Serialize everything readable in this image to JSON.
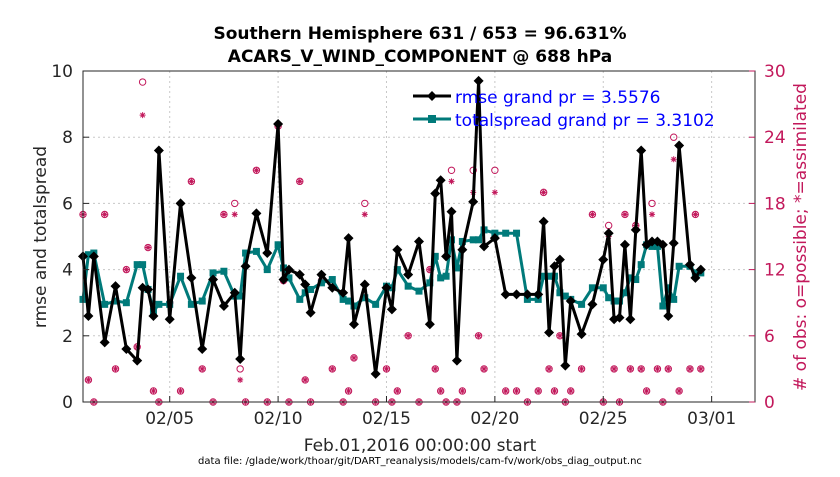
{
  "chart_data": {
    "type": "line",
    "title_line1": "Southern Hemisphere 631 / 653 = 96.631%",
    "title_line2": "ACARS_V_WIND_COMPONENT @ 688 hPa",
    "xlabel": "Feb.01,2016 00:00:00 start",
    "ylabel_left": "rmse and totalspread",
    "ylabel_right": "# of obs: o=possible; *=assimilated",
    "footnote": "data file: /glade/work/thoar/git/DART_reanalysis/models/cam-fv/work/obs_diag_output.nc",
    "xlim": [
      1,
      32
    ],
    "ylim_left": [
      0,
      10
    ],
    "ylim_right": [
      0,
      30
    ],
    "x_ticks": [
      5,
      10,
      15,
      20,
      25,
      30
    ],
    "x_tick_labels": [
      "02/05",
      "02/10",
      "02/15",
      "02/20",
      "02/25",
      "03/01"
    ],
    "y_ticks_left": [
      "0",
      "2",
      "4",
      "6",
      "8",
      "10"
    ],
    "y_ticks_right": [
      "0",
      "6",
      "12",
      "18",
      "24",
      "30"
    ],
    "grid": true,
    "legend_position": "top-right",
    "colors": {
      "rmse": "#000000",
      "spread": "#007a7a",
      "obs": "#c2185b",
      "legend_text": "#0000ff"
    },
    "series": [
      {
        "name": "rmse grand pr = 3.5576",
        "x": [
          1.0,
          1.25,
          1.5,
          2.0,
          2.5,
          3.0,
          3.5,
          3.75,
          4.0,
          4.25,
          4.5,
          5.0,
          5.5,
          6.0,
          6.5,
          7.0,
          7.5,
          8.0,
          8.25,
          8.5,
          9.0,
          9.5,
          10.0,
          10.25,
          10.5,
          11.0,
          11.25,
          11.5,
          12.0,
          12.5,
          13.0,
          13.25,
          13.5,
          14.0,
          14.5,
          15.0,
          15.25,
          15.5,
          16.0,
          16.5,
          17.0,
          17.25,
          17.5,
          17.75,
          18.0,
          18.25,
          18.5,
          19.0,
          19.25,
          19.5,
          20.0,
          20.5,
          21.0,
          21.5,
          22.0,
          22.25,
          22.5,
          22.75,
          23.0,
          23.25,
          23.5,
          24.0,
          24.5,
          25.0,
          25.25,
          25.5,
          25.75,
          26.0,
          26.25,
          26.5,
          26.75,
          27.0,
          27.25,
          27.5,
          27.75,
          28.0,
          28.25,
          28.5,
          29.0,
          29.25,
          29.5
        ],
        "values": [
          4.4,
          2.6,
          4.4,
          1.8,
          3.5,
          1.6,
          1.25,
          3.45,
          3.4,
          2.6,
          7.6,
          2.5,
          6.0,
          3.75,
          1.6,
          3.7,
          2.9,
          3.3,
          1.3,
          4.1,
          5.7,
          4.5,
          8.4,
          3.7,
          4.0,
          3.85,
          3.55,
          2.7,
          3.85,
          3.45,
          3.3,
          4.95,
          2.35,
          3.55,
          0.85,
          3.45,
          2.8,
          4.6,
          3.85,
          4.85,
          2.35,
          6.3,
          6.7,
          4.4,
          5.75,
          1.25,
          4.6,
          6.05,
          9.7,
          4.7,
          4.95,
          3.25,
          3.25,
          3.25,
          3.25,
          5.45,
          2.1,
          4.1,
          4.3,
          1.1,
          3.05,
          2.05,
          2.95,
          4.3,
          5.1,
          2.5,
          2.55,
          4.75,
          2.5,
          5.2,
          7.6,
          4.75,
          4.85,
          4.85,
          4.75,
          2.6,
          4.8,
          7.75,
          4.15,
          3.75,
          4.0
        ]
      },
      {
        "name": "totalspread grand pr = 3.3102",
        "x": [
          1.0,
          1.25,
          1.5,
          2.0,
          2.5,
          3.0,
          3.5,
          3.75,
          4.0,
          4.25,
          4.5,
          5.0,
          5.5,
          6.0,
          6.5,
          7.0,
          7.5,
          8.0,
          8.25,
          8.5,
          9.0,
          9.5,
          10.0,
          10.25,
          10.5,
          11.0,
          11.25,
          11.5,
          12.0,
          12.5,
          13.0,
          13.25,
          13.5,
          14.0,
          14.5,
          15.0,
          15.25,
          15.5,
          16.0,
          16.5,
          17.0,
          17.25,
          17.5,
          17.75,
          18.0,
          18.25,
          18.5,
          19.0,
          19.25,
          19.5,
          20.0,
          20.5,
          21.0,
          21.5,
          22.0,
          22.25,
          22.5,
          22.75,
          23.0,
          23.25,
          23.5,
          24.0,
          24.5,
          25.0,
          25.25,
          25.5,
          25.75,
          26.0,
          26.25,
          26.5,
          26.75,
          27.0,
          27.25,
          27.5,
          27.75,
          28.0,
          28.25,
          28.5,
          29.0,
          29.25,
          29.5
        ],
        "values": [
          3.1,
          4.45,
          4.5,
          2.95,
          3.05,
          3.0,
          4.15,
          4.15,
          3.4,
          2.75,
          2.95,
          2.95,
          3.8,
          2.95,
          3.05,
          3.9,
          3.95,
          3.2,
          3.2,
          4.5,
          4.55,
          4.0,
          4.75,
          4.05,
          3.75,
          3.1,
          3.3,
          3.4,
          3.6,
          3.7,
          3.1,
          3.05,
          2.9,
          3.15,
          2.95,
          3.5,
          3.45,
          4.0,
          3.5,
          3.35,
          3.6,
          4.4,
          3.75,
          3.8,
          4.9,
          4.05,
          4.85,
          4.9,
          4.9,
          5.2,
          5.1,
          5.1,
          5.1,
          3.1,
          3.1,
          3.8,
          3.8,
          3.8,
          3.3,
          3.2,
          3.1,
          2.95,
          3.45,
          3.45,
          3.15,
          3.05,
          3.05,
          3.3,
          3.75,
          3.7,
          4.15,
          4.75,
          4.7,
          4.7,
          2.9,
          3.45,
          3.1,
          4.1,
          4.1,
          3.9,
          3.9
        ]
      },
      {
        "name": "possible",
        "x": [
          1.0,
          1.25,
          1.5,
          2.0,
          2.5,
          3.0,
          3.5,
          3.75,
          4.0,
          4.25,
          4.5,
          5.0,
          5.5,
          6.0,
          6.5,
          7.0,
          7.5,
          8.0,
          8.25,
          8.5,
          9.0,
          9.5,
          10.0,
          10.25,
          10.5,
          11.0,
          11.25,
          11.5,
          12.0,
          12.5,
          13.0,
          13.25,
          13.5,
          14.0,
          14.5,
          15.0,
          15.25,
          15.5,
          16.0,
          16.5,
          17.0,
          17.25,
          17.5,
          17.75,
          18.0,
          18.25,
          18.5,
          19.0,
          19.25,
          19.5,
          20.0,
          20.5,
          21.0,
          21.5,
          22.0,
          22.25,
          22.5,
          22.75,
          23.0,
          23.25,
          23.5,
          24.0,
          24.5,
          25.0,
          25.25,
          25.5,
          25.75,
          26.0,
          26.25,
          26.5,
          26.75,
          27.0,
          27.25,
          27.5,
          27.75,
          28.0,
          28.25,
          28.5,
          29.0,
          29.25,
          29.5
        ],
        "values": [
          17,
          2,
          0,
          17,
          3,
          12,
          5,
          29,
          14,
          1,
          0,
          9,
          1,
          20,
          3,
          0,
          17,
          18,
          3,
          0,
          21,
          0,
          25,
          11,
          0,
          20,
          2,
          0,
          11,
          3,
          0,
          1,
          4,
          18,
          0,
          3,
          0,
          1,
          6,
          0,
          12,
          3,
          1,
          0,
          21,
          0,
          1,
          21,
          6,
          3,
          21,
          1,
          1,
          0,
          1,
          19,
          3,
          1,
          6,
          0,
          1,
          3,
          17,
          0,
          16,
          3,
          0,
          17,
          3,
          16,
          3,
          1,
          18,
          3,
          0,
          3,
          24,
          1,
          3,
          17,
          3
        ]
      },
      {
        "name": "assimilated",
        "x": [
          1.0,
          1.25,
          1.5,
          2.0,
          2.5,
          3.0,
          3.5,
          3.75,
          4.0,
          4.25,
          4.5,
          5.0,
          5.5,
          6.0,
          6.5,
          7.0,
          7.5,
          8.0,
          8.25,
          8.5,
          9.0,
          9.5,
          10.0,
          10.25,
          10.5,
          11.0,
          11.25,
          11.5,
          12.0,
          12.5,
          13.0,
          13.25,
          13.5,
          14.0,
          14.5,
          15.0,
          15.25,
          15.5,
          16.0,
          16.5,
          17.0,
          17.25,
          17.5,
          17.75,
          18.0,
          18.25,
          18.5,
          19.0,
          19.25,
          19.5,
          20.0,
          20.5,
          21.0,
          21.5,
          22.0,
          22.25,
          22.5,
          22.75,
          23.0,
          23.25,
          23.5,
          24.0,
          24.5,
          25.0,
          25.25,
          25.5,
          25.75,
          26.0,
          26.25,
          26.5,
          26.75,
          27.0,
          27.25,
          27.5,
          27.75,
          28.0,
          28.25,
          28.5,
          29.0,
          29.25,
          29.5
        ],
        "values": [
          17,
          2,
          0,
          17,
          3,
          12,
          5,
          26,
          14,
          1,
          0,
          9,
          1,
          20,
          3,
          0,
          17,
          17,
          2,
          0,
          21,
          0,
          25,
          11,
          0,
          20,
          2,
          0,
          11,
          3,
          0,
          1,
          4,
          17,
          0,
          3,
          0,
          1,
          6,
          0,
          12,
          3,
          1,
          0,
          20,
          0,
          1,
          19,
          6,
          3,
          19,
          1,
          1,
          0,
          1,
          19,
          3,
          1,
          6,
          0,
          1,
          3,
          17,
          0,
          15,
          3,
          0,
          17,
          3,
          16,
          3,
          1,
          17,
          3,
          0,
          3,
          22,
          1,
          3,
          17,
          3
        ]
      }
    ]
  }
}
